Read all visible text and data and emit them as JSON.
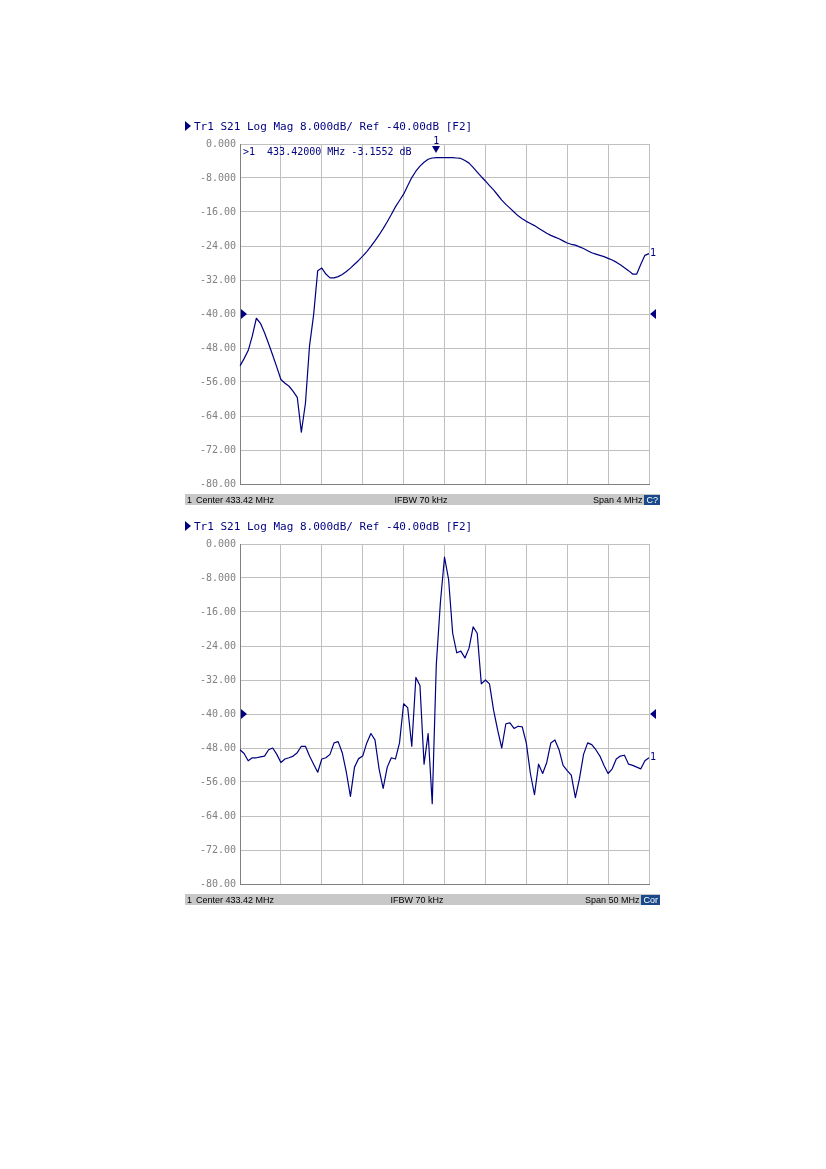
{
  "chart_data": [
    {
      "type": "line",
      "title": "Tr1 S21 Log Mag 8.000dB/ Ref -40.00dB [F2]",
      "categories": [
        null,
        null,
        null,
        null,
        null,
        null,
        null,
        null,
        null,
        null,
        null,
        null,
        null,
        null,
        null,
        null,
        null,
        null,
        null,
        null,
        null,
        null,
        null,
        null,
        null,
        null,
        null,
        null,
        null,
        null,
        null,
        null,
        null,
        null,
        null,
        null,
        null,
        null,
        null,
        null,
        null,
        null,
        null,
        null,
        null,
        null,
        null,
        null,
        null,
        null,
        null,
        null,
        null,
        null,
        null,
        null,
        null,
        null,
        null,
        null,
        null,
        null,
        null,
        null,
        null,
        null,
        null,
        null,
        null,
        null,
        null,
        null,
        null,
        null,
        null,
        null,
        null,
        null,
        null,
        null,
        null,
        null,
        null,
        null,
        null,
        null,
        null,
        null,
        null,
        null,
        null,
        null,
        null,
        null,
        null,
        null,
        null,
        null,
        null,
        null,
        null
      ],
      "series": [
        {
          "color": "#000080",
          "values": [
            -52.2,
            -50.5,
            -48.6,
            -45.2,
            -41.0,
            -42.2,
            -44.4,
            -47,
            -49.7,
            -52.5,
            -55.4,
            -56.3,
            -57,
            -58.2,
            -59.6,
            -67.8,
            -61,
            -47.5,
            -40.2,
            -29.8,
            -29.2,
            -30.6,
            -31.5,
            -31.5,
            -31.2,
            -30.7,
            -30,
            -29.2,
            -28.3,
            -27.4,
            -26.4,
            -25.3,
            -24.1,
            -22.8,
            -21.4,
            -19.9,
            -18.3,
            -16.6,
            -14.8,
            -13.3,
            -11.8,
            -9.8,
            -7.9,
            -6.4,
            -5.2,
            -4.3,
            -3.6,
            -3.3,
            -3.2,
            -3.2,
            -3.2,
            -3.2,
            -3.2,
            -3.3,
            -3.4,
            -3.9,
            -4.5,
            -5.5,
            -6.6,
            -7.7,
            -8.7,
            -9.8,
            -10.8,
            -12.0,
            -13.2,
            -14.2,
            -15.1,
            -16.0,
            -16.9,
            -17.6,
            -18.2,
            -18.7,
            -19.2,
            -19.8,
            -20.4,
            -21.0,
            -21.5,
            -21.9,
            -22.3,
            -22.8,
            -23.3,
            -23.6,
            -23.8,
            -24.2,
            -24.6,
            -25.1,
            -25.6,
            -25.9,
            -26.2,
            -26.5,
            -26.9,
            -27.3,
            -27.8,
            -28.4,
            -29.1,
            -29.8,
            -30.6,
            -30.6,
            -28.3,
            -26.2,
            -25.8
          ]
        }
      ],
      "ylim": [
        -80,
        0
      ],
      "yticks": [
        {
          "value": 0,
          "label": "0.000"
        },
        {
          "value": -8,
          "label": "-8.000"
        },
        {
          "value": -16,
          "label": "-16.00"
        },
        {
          "value": -24,
          "label": "-24.00"
        },
        {
          "value": -32,
          "label": "-32.00"
        },
        {
          "value": -40,
          "label": "-40.00"
        },
        {
          "value": -48,
          "label": "-48.00"
        },
        {
          "value": -56,
          "label": "-56.00"
        },
        {
          "value": -64,
          "label": "-64.00"
        },
        {
          "value": -72,
          "label": "-72.00"
        },
        {
          "value": -80,
          "label": "-80.00"
        }
      ],
      "grid": true,
      "tick_labels": "y",
      "marker": "none",
      "annotations": [
        ">1  433.42000 MHz -3.1552 dB",
        "1",
        "1",
        "1",
        "Center 433.42 MHz",
        "IFBW 70 kHz",
        "Span 4 MHz",
        "C?"
      ]
    },
    {
      "type": "line",
      "title": "Tr1 S21 Log Mag 8.000dB/ Ref -40.00dB [F2]",
      "categories": [
        null,
        null,
        null,
        null,
        null,
        null,
        null,
        null,
        null,
        null,
        null,
        null,
        null,
        null,
        null,
        null,
        null,
        null,
        null,
        null,
        null,
        null,
        null,
        null,
        null,
        null,
        null,
        null,
        null,
        null,
        null,
        null,
        null,
        null,
        null,
        null,
        null,
        null,
        null,
        null,
        null,
        null,
        null,
        null,
        null,
        null,
        null,
        null,
        null,
        null,
        null,
        null,
        null,
        null,
        null,
        null,
        null,
        null,
        null,
        null,
        null,
        null,
        null,
        null,
        null,
        null,
        null,
        null,
        null,
        null,
        null,
        null,
        null,
        null,
        null,
        null,
        null,
        null,
        null,
        null,
        null,
        null,
        null,
        null,
        null,
        null,
        null,
        null,
        null,
        null,
        null,
        null,
        null,
        null,
        null,
        null,
        null,
        null,
        null,
        null,
        null
      ],
      "series": [
        {
          "color": "#000080",
          "values": [
            -48.4,
            -49.3,
            -51,
            -50.3,
            -50.3,
            -50.1,
            -49.9,
            -48.4,
            -48,
            -49.5,
            -51.4,
            -50.6,
            -50.3,
            -49.9,
            -49.1,
            -47.6,
            -47.6,
            -49.9,
            -51.8,
            -53.7,
            -50.6,
            -50.3,
            -49.5,
            -46.8,
            -46.5,
            -49.1,
            -53.7,
            -59.4,
            -52.5,
            -50.5,
            -49.9,
            -46.8,
            -44.6,
            -46.1,
            -52.9,
            -57.5,
            -52.5,
            -50.3,
            -50.6,
            -46.8,
            -37.6,
            -38.5,
            -47.6,
            -31.4,
            -33.3,
            -51.8,
            -44.6,
            -61.1,
            -28.3,
            -13.7,
            -3.1,
            -8.3,
            -21,
            -25.6,
            -25.2,
            -26.8,
            -24.5,
            -19.5,
            -21,
            -32.9,
            -32,
            -32.9,
            -39.1,
            -43.8,
            -48,
            -42.3,
            -42.1,
            -43.4,
            -42.9,
            -43,
            -46.8,
            -54,
            -59,
            -51.8,
            -54,
            -51.4,
            -46.8,
            -46.1,
            -48.4,
            -52.1,
            -53.3,
            -54.4,
            -59.7,
            -55.2,
            -49.5,
            -46.8,
            -47.2,
            -48.4,
            -49.9,
            -52.1,
            -54,
            -52.9,
            -50.6,
            -49.9,
            -49.7,
            -51.8,
            -52.1,
            -52.5,
            -52.9,
            -51,
            -50.3
          ]
        }
      ],
      "ylim": [
        -80,
        0
      ],
      "yticks": [
        {
          "value": 0,
          "label": "0.000"
        },
        {
          "value": -8,
          "label": "-8.000"
        },
        {
          "value": -16,
          "label": "-16.00"
        },
        {
          "value": -24,
          "label": "-24.00"
        },
        {
          "value": -32,
          "label": "-32.00"
        },
        {
          "value": -40,
          "label": "-40.00"
        },
        {
          "value": -48,
          "label": "-48.00"
        },
        {
          "value": -56,
          "label": "-56.00"
        },
        {
          "value": -64,
          "label": "-64.00"
        },
        {
          "value": -72,
          "label": "-72.00"
        },
        {
          "value": -80,
          "label": "-80.00"
        }
      ],
      "grid": true,
      "tick_labels": "y",
      "marker": "none",
      "annotations": [
        "1",
        "1",
        "Center 433.42 MHz",
        "IFBW 70 kHz",
        "Span 50 MHz",
        "Cor"
      ]
    }
  ]
}
